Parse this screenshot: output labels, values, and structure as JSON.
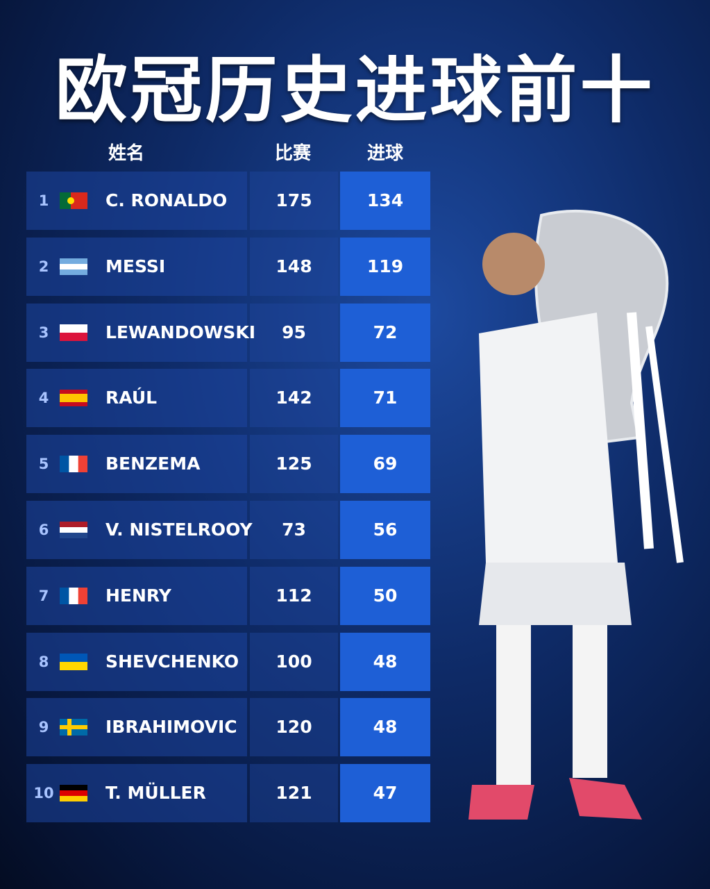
{
  "header": {
    "title": "欧冠历史进球前十"
  },
  "table": {
    "columns": [
      "姓名",
      "比赛",
      "进球"
    ],
    "rows": [
      [
        1,
        "C. RONALDO",
        175,
        134
      ],
      [
        2,
        "MESSI",
        148,
        119
      ],
      [
        3,
        "LEWANDOWSKI",
        95,
        72
      ],
      [
        4,
        "RAÚL",
        142,
        71
      ],
      [
        5,
        "BENZEMA",
        125,
        69
      ],
      [
        6,
        "V. NISTELROOY",
        73,
        56
      ],
      [
        7,
        "HENRY",
        112,
        50
      ],
      [
        8,
        "SHEVCHENKO",
        100,
        48
      ],
      [
        9,
        "IBRAHIMOVIC",
        120,
        48
      ],
      [
        10,
        "T. MÜLLER",
        121,
        47
      ]
    ]
  }
}
